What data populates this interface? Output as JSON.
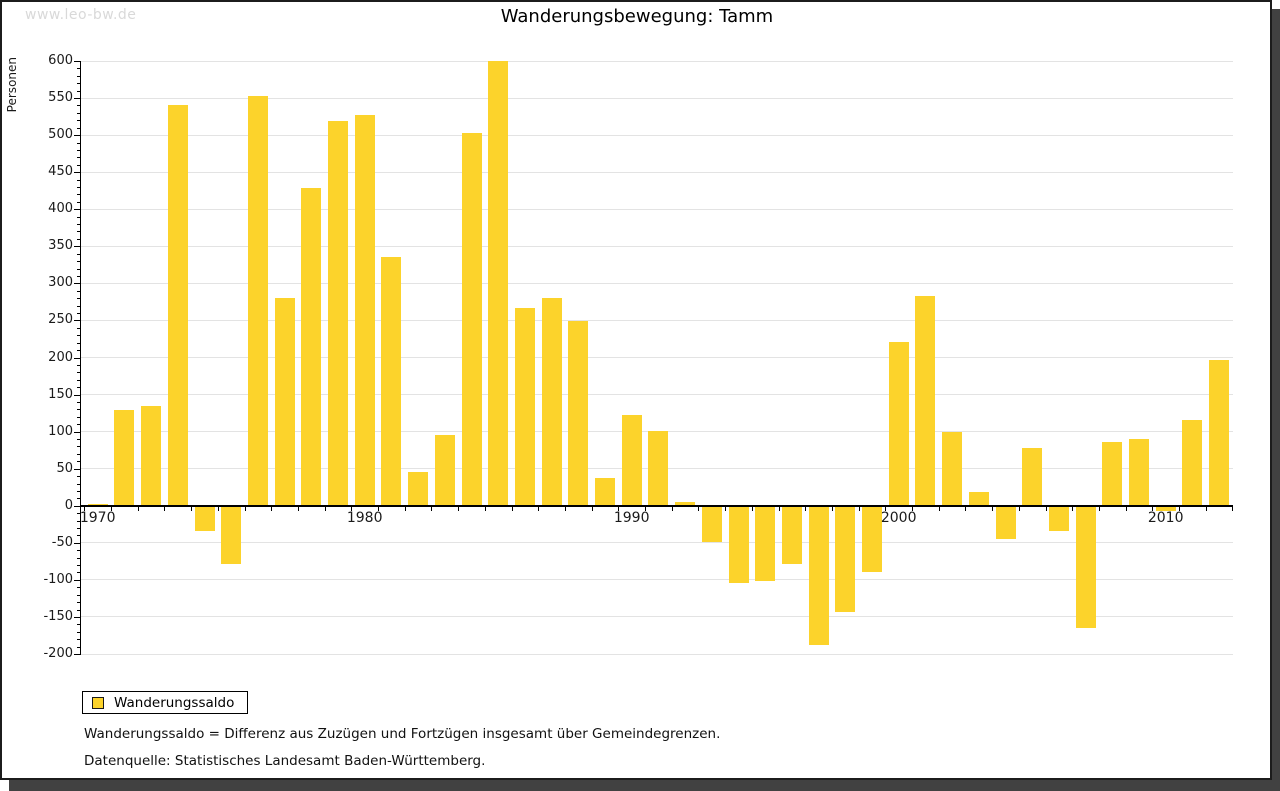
{
  "watermark": "www.leo-bw.de",
  "title": "Wanderungsbewegung: Tamm",
  "y_axis_title": "Personen",
  "legend": {
    "label": "Wanderungssaldo"
  },
  "footnotes": {
    "definition": "Wanderungssaldo = Differenz aus Zuzügen und Fortzügen insgesamt über Gemeindegrenzen.",
    "source": "Datenquelle: Statistisches Landesamt Baden-Württemberg."
  },
  "colors": {
    "bar": "#fcd32b",
    "grid": "#e3e3e3",
    "axis": "#000000",
    "watermark": "#d9d9d9",
    "shadow": "#414141"
  },
  "chart_data": {
    "type": "bar",
    "title": "Wanderungsbewegung: Tamm",
    "xlabel": "",
    "ylabel": "Personen",
    "ylim": [
      -200,
      600
    ],
    "y_tick_step": 50,
    "y_minor_tick_step": 10,
    "grid": true,
    "legend_position": "bottom-left",
    "x_axis_labeled_years": [
      1970,
      1980,
      1990,
      2000,
      2010
    ],
    "x": [
      1970,
      1971,
      1972,
      1973,
      1974,
      1975,
      1976,
      1977,
      1978,
      1979,
      1980,
      1981,
      1982,
      1983,
      1984,
      1985,
      1986,
      1987,
      1988,
      1989,
      1990,
      1991,
      1992,
      1993,
      1994,
      1995,
      1996,
      1997,
      1998,
      1999,
      2000,
      2001,
      2002,
      2003,
      2004,
      2005,
      2006,
      2007,
      2008,
      2009,
      2010,
      2011,
      2012
    ],
    "series": [
      {
        "name": "Wanderungssaldo",
        "values": [
          3,
          129,
          134,
          541,
          -34,
          -78,
          553,
          280,
          429,
          519,
          527,
          335,
          45,
          96,
          503,
          600,
          267,
          280,
          249,
          37,
          122,
          101,
          5,
          -49,
          -104,
          -102,
          -79,
          -188,
          -144,
          -90,
          221,
          283,
          99,
          19,
          -45,
          78,
          -34,
          -165,
          86,
          90,
          -7,
          116,
          196
        ]
      }
    ]
  }
}
